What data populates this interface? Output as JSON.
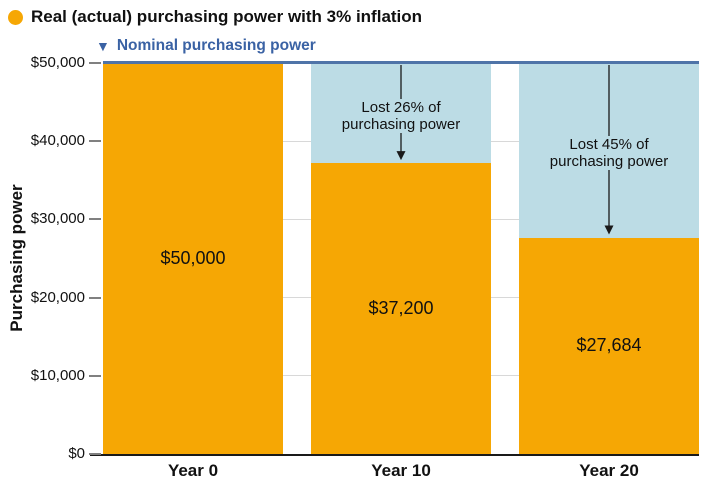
{
  "legend": {
    "real_label": "Real (actual) purchasing power with 3% inflation",
    "nominal_label": "Nominal purchasing power",
    "nominal_marker_glyph": "▼"
  },
  "chart_data": {
    "type": "bar",
    "title": "Real (actual) purchasing power with 3% inflation",
    "categories": [
      "Year 0",
      "Year 10",
      "Year 20"
    ],
    "series": [
      {
        "name": "Real (actual) purchasing power with 3% inflation",
        "role": "bars",
        "values": [
          50000,
          37200,
          27684
        ],
        "color": "#F6A704"
      },
      {
        "name": "Nominal purchasing power",
        "role": "reference-line",
        "values": [
          50000,
          50000,
          50000
        ],
        "color": "#4F74A8"
      }
    ],
    "bar_value_labels": [
      "$50,000",
      "$37,200",
      "$27,684"
    ],
    "annotations": [
      {
        "category_index": 1,
        "text": "Lost 26% of\npurchasing power"
      },
      {
        "category_index": 2,
        "text": "Lost 45% of\npurchasing power"
      }
    ],
    "ylabel": "Purchasing power",
    "xlabel": "",
    "ylim": [
      0,
      50000
    ],
    "yticks": [
      {
        "value": 0,
        "label": "$0"
      },
      {
        "value": 10000,
        "label": "$10,000"
      },
      {
        "value": 20000,
        "label": "$20,000"
      },
      {
        "value": 30000,
        "label": "$30,000"
      },
      {
        "value": 40000,
        "label": "$40,000"
      },
      {
        "value": 50000,
        "label": "$50,000"
      }
    ],
    "colors": {
      "real_bar": "#F6A704",
      "lost_region": "#BCDCE5",
      "nominal_line": "#4F74A8",
      "legend_blue": "#3A62A4",
      "gridline": "#D8D8D8",
      "tick": "#808080",
      "axis": "#1A1A1A",
      "text": "#111111"
    },
    "grid": "horizontal",
    "legend_position": "top-left"
  }
}
